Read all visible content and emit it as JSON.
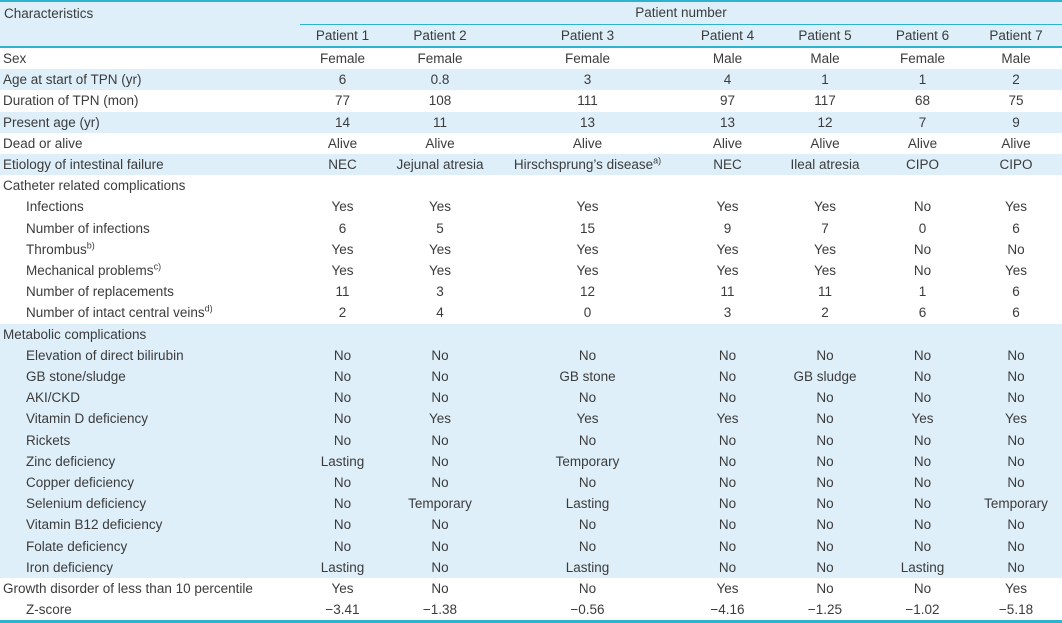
{
  "colors": {
    "accent": "#2bb3cf",
    "row_band": "#deeff9",
    "text": "#3b3b3b"
  },
  "table": {
    "corner_header": "Characteristics",
    "group_header": "Patient number",
    "columns": [
      "Patient 1",
      "Patient 2",
      "Patient 3",
      "Patient 4",
      "Patient 5",
      "Patient 6",
      "Patient 7"
    ],
    "rows": [
      {
        "label": "Sex",
        "indent": false,
        "band": false,
        "values": [
          "Female",
          "Female",
          "Female",
          "Male",
          "Male",
          "Female",
          "Male"
        ]
      },
      {
        "label": "Age at start of TPN (yr)",
        "indent": false,
        "band": true,
        "values": [
          "6",
          "0.8",
          "3",
          "4",
          "1",
          "1",
          "2"
        ]
      },
      {
        "label": "Duration of TPN (mon)",
        "indent": false,
        "band": false,
        "values": [
          "77",
          "108",
          "111",
          "97",
          "117",
          "68",
          "75"
        ]
      },
      {
        "label": "Present age (yr)",
        "indent": false,
        "band": true,
        "values": [
          "14",
          "11",
          "13",
          "13",
          "12",
          "7",
          "9"
        ]
      },
      {
        "label": "Dead or alive",
        "indent": false,
        "band": false,
        "values": [
          "Alive",
          "Alive",
          "Alive",
          "Alive",
          "Alive",
          "Alive",
          "Alive"
        ]
      },
      {
        "label": "Etiology of intestinal failure",
        "indent": false,
        "band": true,
        "values": [
          "NEC",
          "Jejunal atresia",
          {
            "text": "Hirschsprung’s disease",
            "sup": "a)"
          },
          "NEC",
          "Ileal atresia",
          "CIPO",
          "CIPO"
        ]
      },
      {
        "label": "Catheter related complications",
        "indent": false,
        "band": false,
        "values": [
          "",
          "",
          "",
          "",
          "",
          "",
          ""
        ]
      },
      {
        "label": "Infections",
        "indent": true,
        "band": false,
        "values": [
          "Yes",
          "Yes",
          "Yes",
          "Yes",
          "Yes",
          "No",
          "Yes"
        ]
      },
      {
        "label": "Number of infections",
        "indent": true,
        "band": false,
        "values": [
          "6",
          "5",
          "15",
          "9",
          "7",
          "0",
          "6"
        ]
      },
      {
        "label": "Thrombus",
        "sup": "b)",
        "indent": true,
        "band": false,
        "values": [
          "Yes",
          "Yes",
          "Yes",
          "Yes",
          "Yes",
          "No",
          "No"
        ]
      },
      {
        "label": "Mechanical problems",
        "sup": "c)",
        "indent": true,
        "band": false,
        "values": [
          "Yes",
          "Yes",
          "Yes",
          "Yes",
          "Yes",
          "No",
          "Yes"
        ]
      },
      {
        "label": "Number of replacements",
        "indent": true,
        "band": false,
        "values": [
          "11",
          "3",
          "12",
          "11",
          "11",
          "1",
          "6"
        ]
      },
      {
        "label": "Number of intact central veins",
        "sup": "d)",
        "indent": true,
        "band": false,
        "values": [
          "2",
          "4",
          "0",
          "3",
          "2",
          "6",
          "6"
        ]
      },
      {
        "label": "Metabolic complications",
        "indent": false,
        "band": true,
        "values": [
          "",
          "",
          "",
          "",
          "",
          "",
          ""
        ]
      },
      {
        "label": "Elevation of direct bilirubin",
        "indent": true,
        "band": true,
        "values": [
          "No",
          "No",
          "No",
          "No",
          "No",
          "No",
          "No"
        ]
      },
      {
        "label": "GB stone/sludge",
        "indent": true,
        "band": true,
        "values": [
          "No",
          "No",
          "GB stone",
          "No",
          "GB sludge",
          "No",
          "No"
        ]
      },
      {
        "label": "AKI/CKD",
        "indent": true,
        "band": true,
        "values": [
          "No",
          "No",
          "No",
          "No",
          "No",
          "No",
          "No"
        ]
      },
      {
        "label": "Vitamin D deficiency",
        "indent": true,
        "band": true,
        "values": [
          "No",
          "Yes",
          "Yes",
          "Yes",
          "No",
          "Yes",
          "Yes"
        ]
      },
      {
        "label": "Rickets",
        "indent": true,
        "band": true,
        "values": [
          "No",
          "No",
          "No",
          "No",
          "No",
          "No",
          "No"
        ]
      },
      {
        "label": "Zinc deficiency",
        "indent": true,
        "band": true,
        "values": [
          "Lasting",
          "No",
          "Temporary",
          "No",
          "No",
          "No",
          "No"
        ]
      },
      {
        "label": "Copper deficiency",
        "indent": true,
        "band": true,
        "values": [
          "No",
          "No",
          "No",
          "No",
          "No",
          "No",
          "No"
        ]
      },
      {
        "label": "Selenium deficiency",
        "indent": true,
        "band": true,
        "values": [
          "No",
          "Temporary",
          "Lasting",
          "No",
          "No",
          "No",
          "Temporary"
        ]
      },
      {
        "label": "Vitamin B12 deficiency",
        "indent": true,
        "band": true,
        "values": [
          "No",
          "No",
          "No",
          "No",
          "No",
          "No",
          "No"
        ]
      },
      {
        "label": "Folate deficiency",
        "indent": true,
        "band": true,
        "values": [
          "No",
          "No",
          "No",
          "No",
          "No",
          "No",
          "No"
        ]
      },
      {
        "label": "Iron deficiency",
        "indent": true,
        "band": true,
        "values": [
          "Lasting",
          "No",
          "Lasting",
          "No",
          "No",
          "Lasting",
          "No"
        ]
      },
      {
        "label": "Growth disorder of less than 10 percentile",
        "indent": false,
        "band": false,
        "values": [
          "Yes",
          "No",
          "No",
          "Yes",
          "No",
          "No",
          "Yes"
        ]
      },
      {
        "label": "Z-score",
        "indent": true,
        "band": false,
        "values": [
          "−3.41",
          "−1.38",
          "−0.56",
          "−4.16",
          "−1.25",
          "−1.02",
          "−5.18"
        ]
      }
    ]
  }
}
